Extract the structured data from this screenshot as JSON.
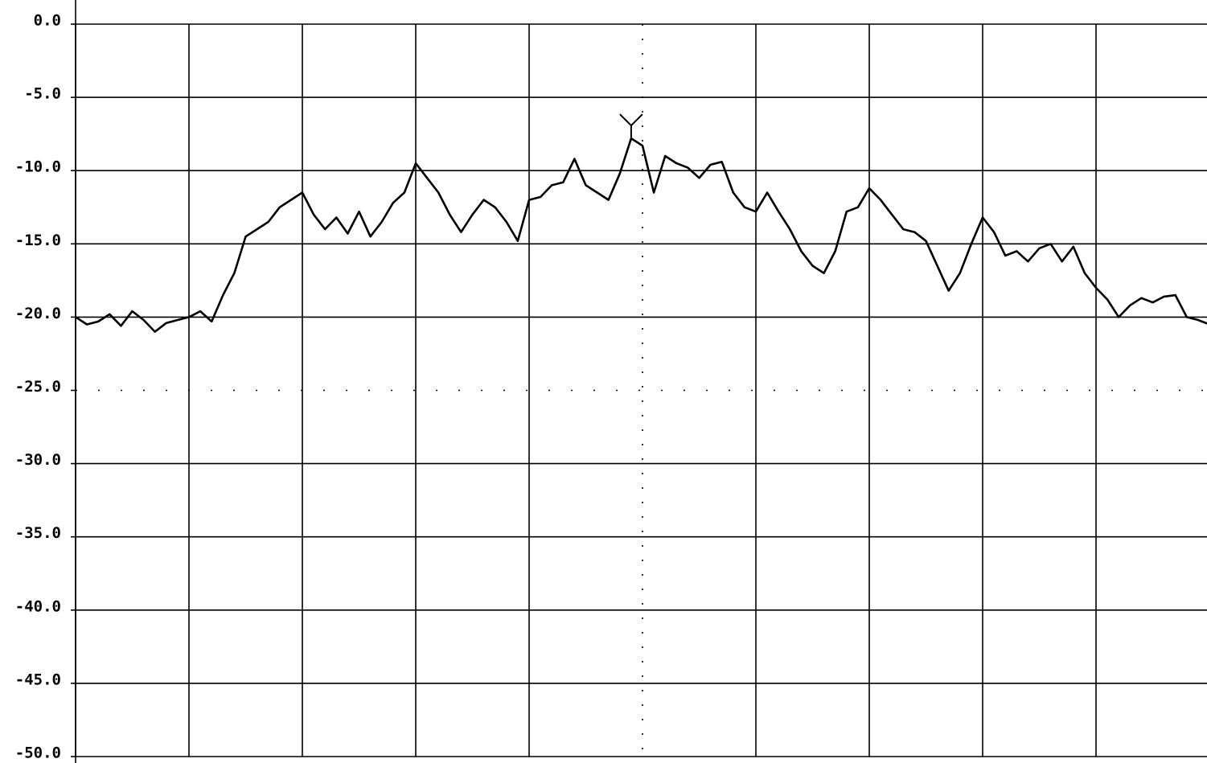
{
  "chart_data": {
    "type": "line",
    "series": [
      {
        "color": "#000000",
        "values": [
          -20,
          -20.5,
          -20.3,
          -19.8,
          -20.6,
          -19.6,
          -20.2,
          -21.0,
          -20.4,
          -20.2,
          -20.0,
          -19.6,
          -20.3,
          -18.5,
          -17.0,
          -14.5,
          -14.0,
          -13.5,
          -12.5,
          -12.0,
          -11.5,
          -13.0,
          -14.0,
          -13.2,
          -14.3,
          -12.8,
          -14.5,
          -13.5,
          -12.2,
          -11.5,
          -9.5,
          -10.5,
          -11.5,
          -13.0,
          -14.2,
          -13.0,
          -12.0,
          -12.5,
          -13.5,
          -14.8,
          -12.0,
          -11.8,
          -11.0,
          -10.8,
          -9.2,
          -11.0,
          -11.5,
          -12.0,
          -10.2,
          -7.8,
          -8.3,
          -11.5,
          -9.0,
          -9.5,
          -9.8,
          -10.5,
          -9.6,
          -9.4,
          -11.5,
          -12.5,
          -12.8,
          -11.5,
          -12.8,
          -14.0,
          -15.5,
          -16.5,
          -17.0,
          -15.5,
          -12.8,
          -12.5,
          -11.2,
          -12.0,
          -13.0,
          -14.0,
          -14.2,
          -14.8,
          -16.5,
          -18.2,
          -17.0,
          -15.0,
          -13.2,
          -14.2,
          -15.8,
          -15.5,
          -16.2,
          -15.3,
          -15.0,
          -16.2,
          -15.2,
          -17.0,
          -18.0,
          -18.8,
          -20.0,
          -19.2,
          -18.7,
          -19.0,
          -18.6,
          -18.5,
          -20.0,
          -20.2,
          -20.5
        ]
      }
    ],
    "ylim": [
      -50,
      0
    ],
    "yticks": [
      {
        "value": 0,
        "label": "0.0"
      },
      {
        "value": -5,
        "label": "-5.0"
      },
      {
        "value": -10,
        "label": "-10.0"
      },
      {
        "value": -15,
        "label": "-15.0"
      },
      {
        "value": -20,
        "label": "-20.0"
      },
      {
        "value": -25,
        "label": "-25.0"
      },
      {
        "value": -30,
        "label": "-30.0"
      },
      {
        "value": -35,
        "label": "-35.0"
      },
      {
        "value": -40,
        "label": "-40.0"
      },
      {
        "value": -45,
        "label": "-45.0"
      },
      {
        "value": -50,
        "label": "-50.0"
      }
    ],
    "grid": true
  }
}
